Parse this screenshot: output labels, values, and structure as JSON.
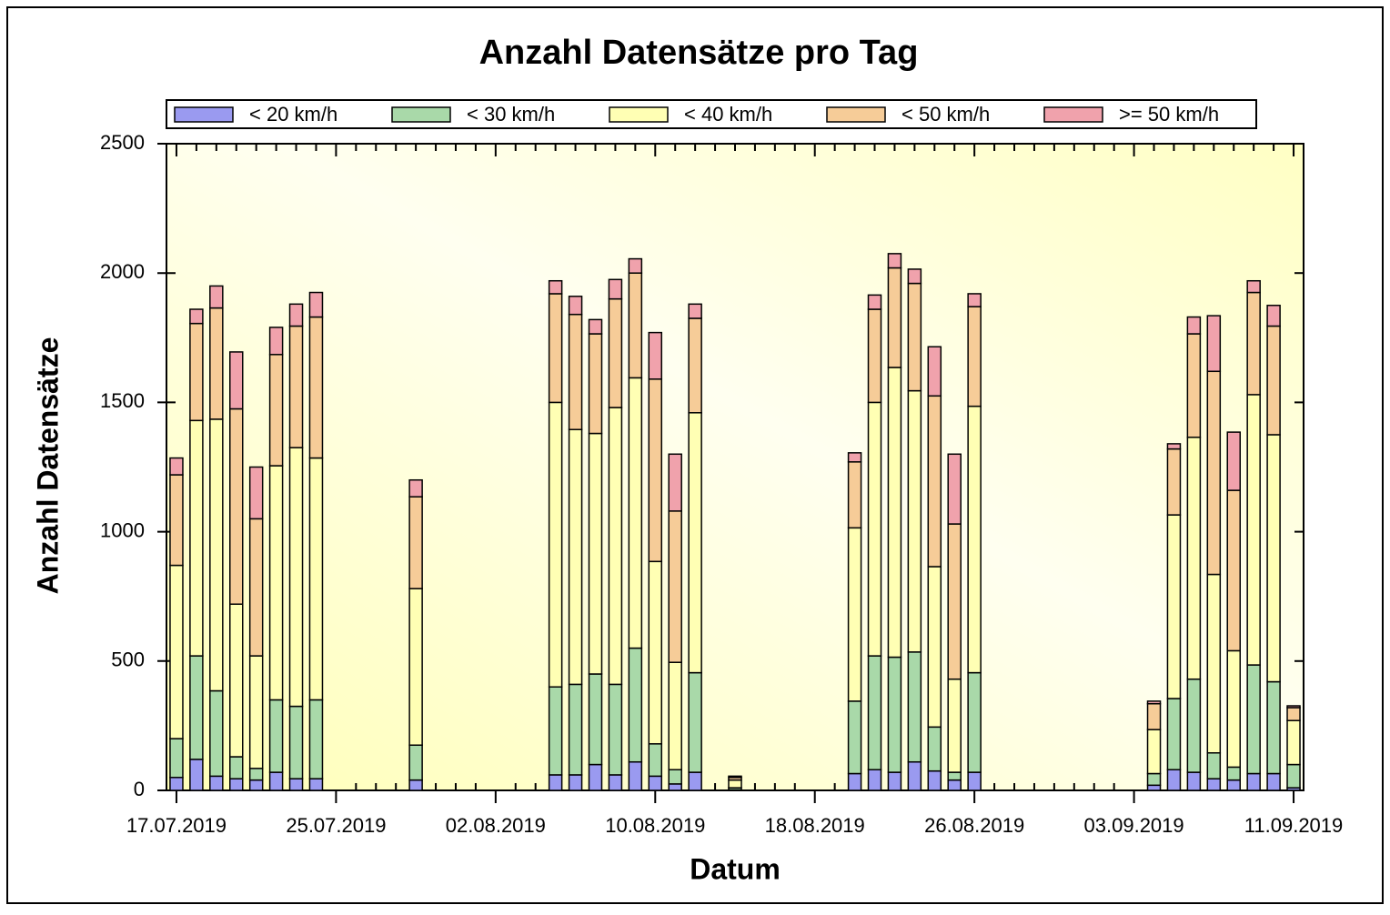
{
  "chart_data": {
    "type": "stacked_bar",
    "title": "Anzahl Datensätze pro Tag",
    "xlabel": "Datum",
    "ylabel": "Anzahl Datensätze",
    "categories": [
      "17.07.2019",
      null,
      null,
      null,
      null,
      null,
      null,
      null,
      "25.07.2019",
      null,
      null,
      null,
      null,
      null,
      null,
      null,
      "02.08.2019",
      null,
      null,
      null,
      null,
      null,
      null,
      null,
      "10.08.2019",
      null,
      null,
      null,
      null,
      null,
      null,
      null,
      "18.08.2019",
      null,
      null,
      null,
      null,
      null,
      null,
      null,
      "26.08.2019",
      null,
      null,
      null,
      null,
      null,
      null,
      null,
      "03.09.2019",
      null,
      null,
      null,
      null,
      null,
      null,
      null,
      "11.09.2019"
    ],
    "series": [
      {
        "name": "< 20 km/h",
        "color": "#9a9af0",
        "values": [
          50,
          120,
          55,
          45,
          40,
          70,
          45,
          45,
          null,
          null,
          null,
          null,
          40,
          null,
          null,
          null,
          null,
          null,
          null,
          60,
          60,
          100,
          60,
          110,
          55,
          25,
          70,
          null,
          2,
          null,
          null,
          null,
          null,
          null,
          65,
          80,
          70,
          110,
          75,
          40,
          70,
          null,
          null,
          null,
          null,
          null,
          null,
          null,
          null,
          20,
          80,
          70,
          45,
          40,
          65,
          65,
          10
        ]
      },
      {
        "name": "< 30 km/h",
        "color": "#a9d9a9",
        "values": [
          150,
          400,
          330,
          85,
          45,
          280,
          280,
          305,
          null,
          null,
          null,
          null,
          135,
          null,
          null,
          null,
          null,
          null,
          null,
          340,
          350,
          350,
          350,
          440,
          125,
          55,
          385,
          null,
          8,
          null,
          null,
          null,
          null,
          null,
          280,
          440,
          445,
          425,
          170,
          30,
          385,
          null,
          null,
          null,
          null,
          null,
          null,
          null,
          null,
          45,
          275,
          360,
          100,
          50,
          420,
          355,
          90
        ]
      },
      {
        "name": "< 40 km/h",
        "color": "#ffffb4",
        "values": [
          670,
          910,
          1050,
          590,
          435,
          905,
          1000,
          935,
          null,
          null,
          null,
          null,
          605,
          null,
          null,
          null,
          null,
          null,
          null,
          1100,
          985,
          930,
          1070,
          1045,
          705,
          415,
          1005,
          null,
          30,
          null,
          null,
          null,
          null,
          null,
          670,
          980,
          1120,
          1010,
          620,
          360,
          1030,
          null,
          null,
          null,
          null,
          null,
          null,
          null,
          null,
          170,
          710,
          935,
          690,
          450,
          1045,
          955,
          170
        ]
      },
      {
        "name": "< 50 km/h",
        "color": "#f6cc98",
        "values": [
          350,
          375,
          430,
          755,
          530,
          430,
          470,
          545,
          null,
          null,
          null,
          null,
          355,
          null,
          null,
          null,
          null,
          null,
          null,
          420,
          445,
          385,
          420,
          405,
          705,
          585,
          365,
          null,
          10,
          null,
          null,
          null,
          null,
          null,
          255,
          360,
          385,
          415,
          660,
          600,
          385,
          null,
          null,
          null,
          null,
          null,
          null,
          null,
          null,
          100,
          255,
          400,
          785,
          620,
          395,
          420,
          50
        ]
      },
      {
        "name": ">= 50 km/h",
        "color": "#f0a2ac",
        "values": [
          65,
          55,
          85,
          220,
          200,
          105,
          85,
          95,
          null,
          null,
          null,
          null,
          65,
          null,
          null,
          null,
          null,
          null,
          null,
          50,
          70,
          55,
          75,
          55,
          180,
          220,
          55,
          null,
          5,
          null,
          null,
          null,
          null,
          null,
          35,
          55,
          55,
          55,
          190,
          270,
          50,
          null,
          null,
          null,
          null,
          null,
          null,
          null,
          null,
          10,
          20,
          65,
          215,
          225,
          45,
          80,
          7
        ]
      }
    ],
    "ylim": [
      0,
      2500
    ],
    "yticks": [
      0,
      500,
      1000,
      1500,
      2000,
      2500
    ],
    "legend": "top"
  }
}
